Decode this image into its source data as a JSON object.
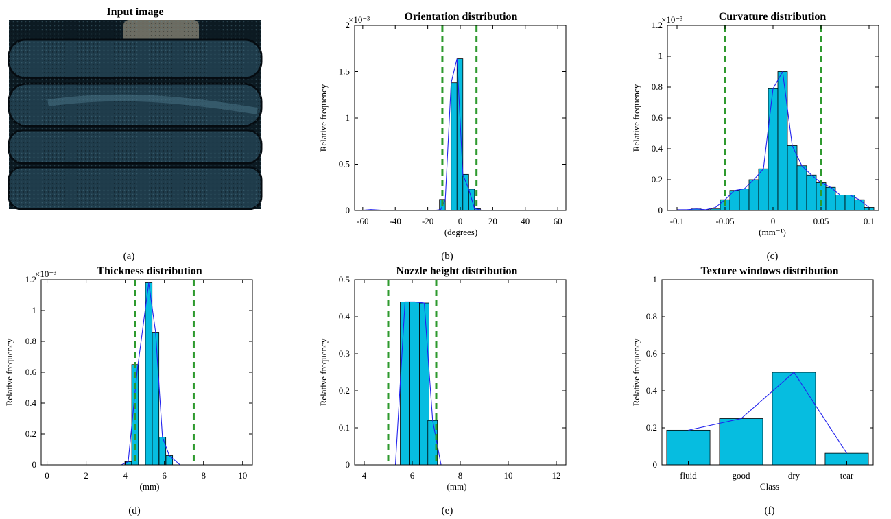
{
  "figure": {
    "captions": [
      "(a)",
      "(b)",
      "(c)",
      "(d)",
      "(e)",
      "(f)"
    ],
    "input_image": {
      "title": "Input image",
      "colors": {
        "bg": "#0c1a22",
        "layer": "#1f3c4b",
        "highlight": "#4f7d90",
        "groove": "#050b10",
        "nozzle": "#6c6c62"
      }
    }
  },
  "style": {
    "bar_fill": "#06bde0",
    "bar_stroke": "#000000",
    "line_color": "#2222ee",
    "threshold_color": "#2e9a2e"
  },
  "chart_data": [
    {
      "panel": "b",
      "type": "bar",
      "title": "Orientation distribution",
      "xlabel": "(degrees)",
      "ylabel": "Relative frequency",
      "multiplier": "×10⁻³",
      "xlim": [
        -65,
        65
      ],
      "ylim": [
        0,
        2
      ],
      "xticks": [
        -60,
        -40,
        -20,
        0,
        20,
        40,
        60
      ],
      "xtick_labels": [
        "-60",
        "-40",
        "-20",
        "0",
        "20",
        "40",
        "60"
      ],
      "yticks": [
        0,
        0.5,
        1,
        1.5,
        2
      ],
      "ytick_labels": [
        "0",
        "0.5",
        "1",
        "1.5",
        "2"
      ],
      "bar_width": 3.6,
      "bars": [
        [
          -11,
          0.12
        ],
        [
          -7.4,
          0.0
        ],
        [
          -3.8,
          1.38
        ],
        [
          -0.2,
          1.64
        ],
        [
          3.4,
          0.39
        ],
        [
          7,
          0.23
        ],
        [
          10.6,
          0.02
        ]
      ],
      "line": [
        [
          -62,
          0.0
        ],
        [
          -55,
          0.01
        ],
        [
          -45,
          0.0
        ],
        [
          -30,
          0.0
        ],
        [
          -16,
          0.0
        ],
        [
          -12,
          0.01
        ],
        [
          -9.2,
          0.12
        ],
        [
          -5.6,
          1.38
        ],
        [
          -2,
          1.64
        ],
        [
          1.6,
          0.39
        ],
        [
          5.2,
          0.23
        ],
        [
          8.8,
          0.02
        ],
        [
          14,
          0.0
        ],
        [
          25,
          0.0
        ],
        [
          45,
          0.0
        ],
        [
          62,
          0.0
        ]
      ],
      "thresholds": [
        -11,
        10
      ]
    },
    {
      "panel": "c",
      "type": "bar",
      "title": "Curvature distribution",
      "xlabel": "(mm⁻¹)",
      "ylabel": "Relative frequency",
      "multiplier": "×10⁻³",
      "xlim": [
        -0.11,
        0.11
      ],
      "ylim": [
        0,
        1.2
      ],
      "xticks": [
        -0.1,
        -0.05,
        0,
        0.05,
        0.1
      ],
      "xtick_labels": [
        "-0.1",
        "-0.05",
        "0",
        "0.05",
        "0.1"
      ],
      "yticks": [
        0,
        0.2,
        0.4,
        0.6,
        0.8,
        1,
        1.2
      ],
      "ytick_labels": [
        "0",
        "0.2",
        "0.4",
        "0.6",
        "0.8",
        "1",
        "1.2"
      ],
      "bar_width": 0.01,
      "bars": [
        [
          -0.1,
          0.0
        ],
        [
          -0.09,
          0.005
        ],
        [
          -0.08,
          0.01
        ],
        [
          -0.07,
          0.005
        ],
        [
          -0.06,
          0.01
        ],
        [
          -0.05,
          0.07
        ],
        [
          -0.04,
          0.13
        ],
        [
          -0.03,
          0.14
        ],
        [
          -0.02,
          0.2
        ],
        [
          -0.01,
          0.27
        ],
        [
          0.0,
          0.79
        ],
        [
          0.01,
          0.9
        ],
        [
          0.02,
          0.42
        ],
        [
          0.03,
          0.29
        ],
        [
          0.04,
          0.23
        ],
        [
          0.05,
          0.18
        ],
        [
          0.06,
          0.15
        ],
        [
          0.07,
          0.1
        ],
        [
          0.08,
          0.1
        ],
        [
          0.09,
          0.07
        ],
        [
          0.1,
          0.02
        ],
        [
          0.11,
          0.0
        ]
      ],
      "line": [
        [
          -0.1,
          0.005
        ],
        [
          -0.09,
          0.005
        ],
        [
          -0.08,
          0.01
        ],
        [
          -0.07,
          0.005
        ],
        [
          -0.06,
          0.02
        ],
        [
          -0.05,
          0.07
        ],
        [
          -0.04,
          0.13
        ],
        [
          -0.03,
          0.14
        ],
        [
          -0.02,
          0.2
        ],
        [
          -0.01,
          0.27
        ],
        [
          0.0,
          0.79
        ],
        [
          0.01,
          0.9
        ],
        [
          0.02,
          0.42
        ],
        [
          0.03,
          0.29
        ],
        [
          0.04,
          0.23
        ],
        [
          0.05,
          0.18
        ],
        [
          0.06,
          0.15
        ],
        [
          0.07,
          0.1
        ],
        [
          0.08,
          0.1
        ],
        [
          0.09,
          0.07
        ],
        [
          0.1,
          0.02
        ]
      ],
      "thresholds": [
        -0.05,
        0.05
      ]
    },
    {
      "panel": "d",
      "type": "bar",
      "title": "Thickness distribution",
      "xlabel": "(mm)",
      "ylabel": "Relative frequency",
      "multiplier": "×10⁻³",
      "xlim": [
        -0.3,
        10.5
      ],
      "ylim": [
        0,
        1.2
      ],
      "xticks": [
        0,
        2,
        4,
        6,
        8,
        10
      ],
      "xtick_labels": [
        "0",
        "2",
        "4",
        "6",
        "8",
        "10"
      ],
      "yticks": [
        0,
        0.2,
        0.4,
        0.6,
        0.8,
        1,
        1.2
      ],
      "ytick_labels": [
        "0",
        "0.2",
        "0.4",
        "0.6",
        "0.8",
        "1",
        "1.2"
      ],
      "bar_width": 0.34,
      "bars": [
        [
          4.15,
          0.02
        ],
        [
          4.5,
          0.65
        ],
        [
          4.85,
          0.0
        ],
        [
          5.2,
          1.18
        ],
        [
          5.55,
          0.86
        ],
        [
          5.9,
          0.18
        ],
        [
          6.25,
          0.06
        ]
      ],
      "line": [
        [
          0.3,
          0.0
        ],
        [
          2.0,
          0.0
        ],
        [
          3.8,
          0.0
        ],
        [
          4.15,
          0.02
        ],
        [
          4.6,
          0.6
        ],
        [
          5.2,
          1.18
        ],
        [
          5.55,
          0.86
        ],
        [
          5.9,
          0.18
        ],
        [
          6.25,
          0.06
        ],
        [
          6.8,
          0.0
        ],
        [
          7.5,
          0.0
        ],
        [
          9.8,
          0.0
        ]
      ],
      "thresholds": [
        4.5,
        7.5
      ]
    },
    {
      "panel": "e",
      "type": "bar",
      "title": "Nozzle height distribution",
      "xlabel": "(mm)",
      "ylabel": "Relative frequency",
      "multiplier": "",
      "xlim": [
        3.6,
        12.4
      ],
      "ylim": [
        0,
        0.5
      ],
      "xticks": [
        4,
        6,
        8,
        10,
        12
      ],
      "xtick_labels": [
        "4",
        "6",
        "8",
        "10",
        "12"
      ],
      "yticks": [
        0,
        0.1,
        0.2,
        0.3,
        0.4,
        0.5
      ],
      "ytick_labels": [
        "0",
        "0.1",
        "0.2",
        "0.3",
        "0.4",
        "0.5"
      ],
      "bar_width": 0.4,
      "bars": [
        [
          5.7,
          0.44
        ],
        [
          6.1,
          0.44
        ],
        [
          6.5,
          0.437
        ],
        [
          6.85,
          0.12
        ]
      ],
      "line": [
        [
          4.2,
          0.0
        ],
        [
          5.3,
          0.0
        ],
        [
          5.7,
          0.44
        ],
        [
          6.1,
          0.44
        ],
        [
          6.5,
          0.437
        ],
        [
          6.85,
          0.12
        ],
        [
          7.2,
          0.0
        ],
        [
          9.0,
          0.0
        ],
        [
          11.8,
          0.0
        ]
      ],
      "thresholds": [
        5,
        7
      ]
    },
    {
      "panel": "f",
      "type": "bar",
      "title": "Texture windows distribution",
      "xlabel": "Class",
      "ylabel": "Relative frequency",
      "multiplier": "",
      "categories": [
        "fluid",
        "good",
        "dry",
        "tear"
      ],
      "values": [
        0.1875,
        0.25,
        0.5,
        0.0625
      ],
      "ylim": [
        0,
        1
      ],
      "yticks": [
        0,
        0.2,
        0.4,
        0.6,
        0.8,
        1
      ],
      "ytick_labels": [
        "0",
        "0.2",
        "0.4",
        "0.6",
        "0.8",
        "1"
      ],
      "line_through_tops": true
    }
  ]
}
